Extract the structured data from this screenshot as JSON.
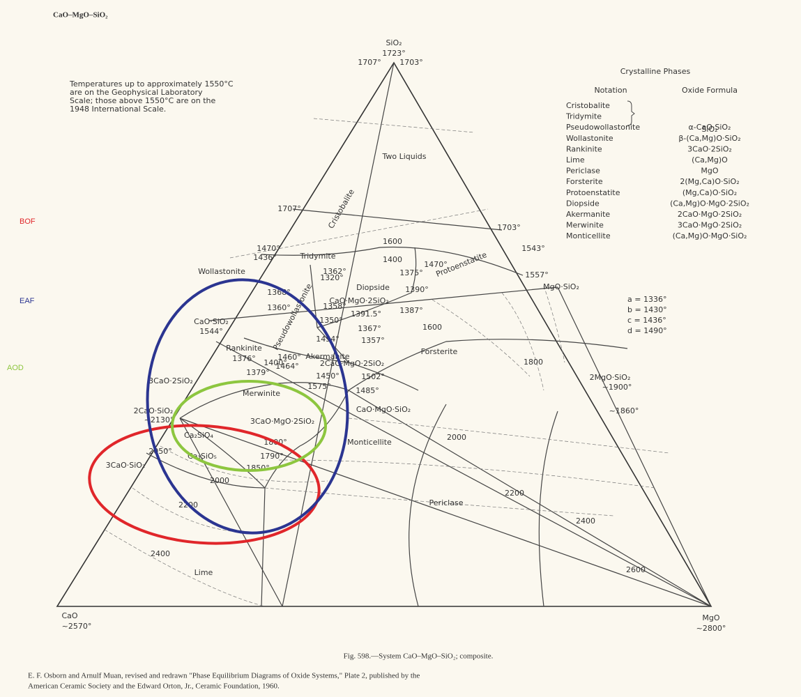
{
  "header": "CaO–MgO–SiO₂",
  "note": [
    "Temperatures up to approximately 1550°C",
    "are on the Geophysical Laboratory",
    "Scale; those above 1550°C are on the",
    "1948 International Scale."
  ],
  "apexes": [
    {
      "name": "SiO₂",
      "temp": "1723°"
    },
    {
      "name": "CaO",
      "temp": "~2570°"
    },
    {
      "name": "MgO",
      "temp": "~2800°"
    }
  ],
  "regions": [
    "Two Liquids",
    "Cristobalite",
    "Tridymite",
    "Wollastonite",
    "Pseudowollastonite",
    "Diopside",
    "Protoenstatite",
    "Rankinite",
    "Akermanite",
    "Merwinite",
    "Forsterite",
    "Monticellite",
    "Periclase",
    "Lime",
    "Ca₂SiO₄",
    "Ca₃SiO₅"
  ],
  "compounds": [
    "CaO·SiO₂",
    "1544°",
    "3CaO·2SiO₂",
    "2CaO·SiO₂",
    "~2130°",
    "3CaO·SiO₂",
    "MgO·SiO₂",
    "2MgO·SiO₂",
    "~1900°",
    "CaO·MgO·2SiO₂",
    "2CaO·MgO·2SiO₂",
    "3CaO·MgO·2SiO₂",
    "CaO·MgO·SiO₂"
  ],
  "temperatures": [
    "1707°",
    "1703°",
    "1707°",
    "1703°",
    "1470°",
    "1436°",
    "1543°",
    "1557°",
    "1600",
    "1400",
    "1362°",
    "1375°",
    "1470°",
    "1320°",
    "1390°",
    "1368°",
    "1358°",
    "1387°",
    "1391.5°",
    "1360°",
    "1350°",
    "1367°",
    "1454°",
    "1357°",
    "1460°",
    "1464°",
    "1376°",
    "1400°",
    "1379°",
    "1450°",
    "1575°",
    "1502°",
    "1485°",
    "1600",
    "1800",
    "~1860°",
    "2000",
    "2200",
    "2400",
    "2600",
    "1800°",
    "1790°",
    "1850°",
    "2050°",
    "2000",
    "2200",
    "2400"
  ],
  "legend": {
    "title": "Crystalline Phases",
    "headers": [
      "Notation",
      "Oxide Formula"
    ],
    "names": [
      "Cristobalite",
      "Tridymite",
      "Pseudowollastonite",
      "Wollastonite",
      "Rankinite",
      "Lime",
      "Periclase",
      "Forsterite",
      "Protoenstatite",
      "Diopside",
      "Akermanite",
      "Merwinite",
      "Monticellite"
    ],
    "formulas": [
      "SiO₂",
      "α-CaO·SiO₂",
      "β-(Ca,Mg)O·SiO₂",
      "3CaO·2SiO₂",
      "(Ca,Mg)O",
      "MgO",
      "2(Mg,Ca)O·SiO₂",
      "(Mg,Ca)O·SiO₂",
      "(Ca,Mg)O·MgO·2SiO₂",
      "2CaO·MgO·2SiO₂",
      "3CaO·MgO·2SiO₂",
      "(Ca,Mg)O·MgO·SiO₂"
    ]
  },
  "points": [
    "a = 1336°",
    "b = 1430°",
    "c = 1436°",
    "d = 1490°"
  ],
  "processes": [
    {
      "label": "BOF",
      "color": "#e0262a"
    },
    {
      "label": "EAF",
      "color": "#2b3591"
    },
    {
      "label": "AOD",
      "color": "#8dc63f"
    }
  ],
  "caption": "Fig. 598.—System CaO–MgO–SiO₂; composite.",
  "credit": [
    "E. F. Osborn and Arnulf Muan, revised and redrawn \"Phase Equilibrium Diagrams of Oxide Systems,\" Plate 2, published by the",
    "American Ceramic Society and the Edward Orton, Jr., Ceramic Foundation, 1960."
  ]
}
